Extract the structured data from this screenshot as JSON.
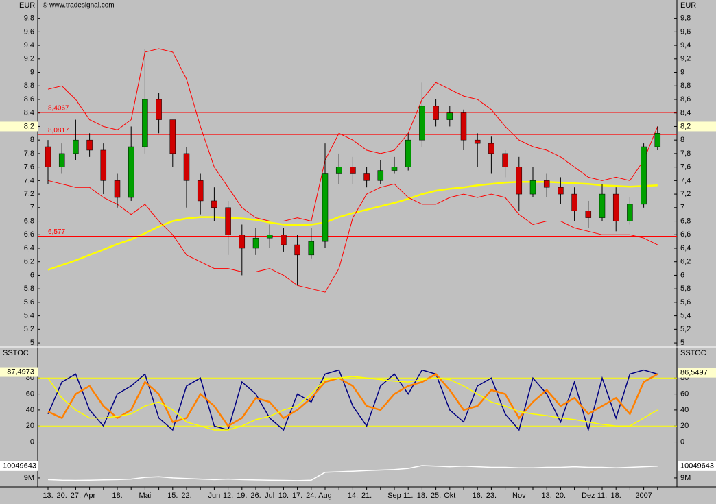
{
  "chart_data": [
    {
      "type": "candlestick",
      "unit_label": "EUR",
      "source": "© www.tradesignal.com",
      "categories": [
        "13.",
        "20.",
        "27.",
        "Apr",
        null,
        "18.",
        null,
        "Mai",
        null,
        "15.",
        "22.",
        null,
        "Jun",
        "12.",
        "19.",
        "26.",
        "Jul",
        "10.",
        "17.",
        "24.",
        "Aug",
        null,
        "14.",
        "21.",
        null,
        "Sep",
        "11.",
        "18.",
        "25.",
        "Okt",
        null,
        "16.",
        "23.",
        null,
        "Nov",
        null,
        "13.",
        "20.",
        null,
        "Dez",
        "11.",
        "18.",
        null,
        "2007",
        null
      ],
      "open": [
        7.9,
        7.6,
        7.8,
        8.0,
        7.85,
        7.4,
        7.15,
        7.9,
        8.6,
        8.3,
        7.8,
        7.4,
        7.1,
        7.0,
        6.6,
        6.4,
        6.55,
        6.6,
        6.45,
        6.3,
        6.5,
        7.5,
        7.6,
        7.5,
        7.4,
        7.55,
        7.6,
        8.0,
        8.5,
        8.3,
        8.4,
        8.0,
        7.95,
        7.8,
        7.6,
        7.2,
        7.4,
        7.3,
        7.2,
        6.95,
        6.85,
        7.2,
        6.8,
        7.05,
        7.9
      ],
      "high": [
        8.0,
        7.95,
        8.3,
        8.1,
        7.95,
        7.5,
        8.2,
        9.35,
        8.7,
        8.3,
        7.9,
        7.5,
        7.3,
        7.1,
        6.75,
        6.7,
        6.75,
        6.7,
        6.6,
        6.7,
        7.95,
        7.8,
        7.75,
        7.6,
        7.7,
        7.75,
        8.1,
        8.85,
        8.6,
        8.5,
        8.45,
        8.1,
        8.05,
        7.85,
        7.75,
        7.6,
        7.5,
        7.45,
        7.3,
        7.1,
        7.35,
        7.3,
        7.15,
        7.95,
        8.2
      ],
      "low": [
        7.35,
        7.5,
        7.7,
        7.75,
        7.2,
        7.0,
        7.1,
        7.8,
        8.1,
        7.6,
        7.0,
        6.9,
        6.8,
        6.3,
        6.0,
        6.3,
        6.4,
        6.35,
        5.85,
        6.25,
        6.4,
        7.35,
        7.35,
        7.3,
        7.35,
        7.5,
        7.55,
        7.9,
        8.2,
        8.2,
        7.85,
        7.6,
        7.5,
        7.45,
        6.95,
        7.15,
        7.15,
        7.05,
        6.8,
        6.7,
        6.8,
        6.65,
        6.75,
        7.0,
        7.85
      ],
      "close": [
        7.6,
        7.8,
        8.0,
        7.85,
        7.4,
        7.15,
        7.9,
        8.6,
        8.3,
        7.8,
        7.4,
        7.1,
        7.0,
        6.6,
        6.4,
        6.55,
        6.6,
        6.45,
        6.3,
        6.5,
        7.5,
        7.6,
        7.5,
        7.4,
        7.55,
        7.6,
        8.0,
        8.5,
        8.3,
        8.4,
        8.0,
        7.95,
        7.8,
        7.6,
        7.2,
        7.4,
        7.3,
        7.2,
        6.95,
        6.85,
        7.2,
        6.8,
        7.05,
        7.9,
        8.1
      ],
      "up_color": "#00a000",
      "down_color": "#d00000",
      "overlays": [
        {
          "color": "#ffff00",
          "values": [
            6.08,
            6.15,
            6.22,
            6.3,
            6.38,
            6.46,
            6.53,
            6.62,
            6.72,
            6.8,
            6.84,
            6.86,
            6.86,
            6.85,
            6.84,
            6.82,
            6.78,
            6.75,
            6.74,
            6.75,
            6.78,
            6.86,
            6.92,
            6.97,
            7.02,
            7.07,
            7.13,
            7.2,
            7.25,
            7.28,
            7.3,
            7.33,
            7.35,
            7.37,
            7.38,
            7.38,
            7.38,
            7.37,
            7.36,
            7.35,
            7.33,
            7.32,
            7.31,
            7.32,
            7.33
          ]
        },
        {
          "color": "#ff0000",
          "values": [
            8.75,
            8.8,
            8.6,
            8.3,
            8.2,
            8.15,
            8.3,
            9.3,
            9.35,
            9.3,
            8.9,
            8.2,
            7.6,
            7.3,
            7.0,
            6.85,
            6.8,
            6.8,
            6.85,
            6.8,
            7.7,
            8.1,
            8.0,
            7.85,
            7.8,
            7.85,
            8.1,
            8.6,
            8.85,
            8.75,
            8.65,
            8.6,
            8.45,
            8.2,
            8.0,
            7.9,
            7.85,
            7.75,
            7.6,
            7.45,
            7.4,
            7.45,
            7.4,
            7.7,
            8.2
          ]
        },
        {
          "color": "#ff0000",
          "values": [
            7.4,
            7.35,
            7.3,
            7.3,
            7.15,
            7.05,
            6.9,
            7.05,
            6.8,
            6.6,
            6.3,
            6.2,
            6.1,
            6.1,
            6.05,
            6.05,
            6.1,
            6.0,
            5.85,
            5.8,
            5.75,
            6.1,
            6.85,
            7.2,
            7.3,
            7.35,
            7.15,
            7.05,
            7.05,
            7.15,
            7.2,
            7.15,
            7.2,
            7.15,
            6.9,
            6.75,
            6.8,
            6.8,
            6.7,
            6.65,
            6.6,
            6.6,
            6.6,
            6.55,
            6.45
          ]
        }
      ],
      "levels": [
        {
          "value": 8.4067,
          "label": "8,4067"
        },
        {
          "value": 8.0817,
          "label": "8,0817"
        },
        {
          "value": 6.577,
          "label": "6,577"
        }
      ],
      "level_color": "#ff0000",
      "last_value": {
        "value": 8.2,
        "label": "8,2"
      },
      "ylim": [
        4.95,
        10.07
      ],
      "yticks": [
        5,
        {
          "value": 5.2,
          "label": "5,2"
        },
        {
          "value": 5.4,
          "label": "5,4"
        },
        {
          "value": 5.6,
          "label": "5,6"
        },
        {
          "value": 5.8,
          "label": "5,8"
        },
        6,
        {
          "value": 6.2,
          "label": "6,2"
        },
        {
          "value": 6.4,
          "label": "6,4"
        },
        {
          "value": 6.6,
          "label": "6,6"
        },
        {
          "value": 6.8,
          "label": "6,8"
        },
        7,
        {
          "value": 7.2,
          "label": "7,2"
        },
        {
          "value": 7.4,
          "label": "7,4"
        },
        {
          "value": 7.6,
          "label": "7,6"
        },
        {
          "value": 7.8,
          "label": "7,8"
        },
        8,
        {
          "value": 8.2,
          "label": "8,2"
        },
        {
          "value": 8.4,
          "label": "8,4"
        },
        {
          "value": 8.6,
          "label": "8,6"
        },
        {
          "value": 8.8,
          "label": "8,8"
        },
        9,
        {
          "value": 9.2,
          "label": "9,2"
        },
        {
          "value": 9.4,
          "label": "9,4"
        },
        {
          "value": 9.6,
          "label": "9,6"
        },
        {
          "value": 9.8,
          "label": "9,8"
        }
      ]
    },
    {
      "type": "line",
      "title": "SSTOC",
      "series": [
        {
          "color": "#000080",
          "values": [
            35,
            75,
            85,
            40,
            20,
            60,
            70,
            85,
            30,
            15,
            70,
            80,
            20,
            15,
            75,
            60,
            30,
            15,
            60,
            50,
            85,
            90,
            45,
            20,
            70,
            85,
            60,
            90,
            85,
            40,
            25,
            70,
            80,
            35,
            15,
            80,
            60,
            25,
            75,
            15,
            80,
            30,
            85,
            90,
            85
          ]
        },
        {
          "color": "#ff8000",
          "values": [
            38,
            30,
            60,
            70,
            45,
            30,
            40,
            75,
            60,
            25,
            30,
            60,
            45,
            20,
            30,
            55,
            50,
            30,
            40,
            55,
            75,
            80,
            70,
            45,
            40,
            60,
            70,
            75,
            85,
            65,
            40,
            45,
            65,
            60,
            30,
            50,
            65,
            45,
            55,
            35,
            45,
            55,
            35,
            75,
            85
          ]
        },
        {
          "color": "#ffff00",
          "values": [
            80,
            55,
            40,
            30,
            30,
            32,
            35,
            45,
            50,
            40,
            25,
            20,
            15,
            15,
            20,
            28,
            32,
            40,
            45,
            60,
            78,
            80,
            82,
            80,
            78,
            76,
            75,
            78,
            80,
            78,
            70,
            60,
            50,
            45,
            38,
            35,
            33,
            30,
            28,
            25,
            22,
            20,
            20,
            30,
            40
          ]
        }
      ],
      "levels": [
        20,
        80
      ],
      "level_color": "#ffff00",
      "markers": [
        {
          "value": 87.4973,
          "label": "87,4973"
        },
        {
          "value": 86.5497,
          "label": "86,5497"
        }
      ],
      "ylim": [
        -15,
        118
      ],
      "yticks": [
        0,
        20,
        40,
        60,
        80
      ]
    },
    {
      "type": "line",
      "series": [
        {
          "color": "#ffffff",
          "values": [
            8850000,
            8800000,
            8780000,
            8800000,
            8830000,
            8850000,
            8900000,
            9050000,
            9100000,
            9000000,
            8950000,
            8900000,
            8850000,
            8900000,
            8850000,
            8820000,
            8800000,
            8780000,
            8760000,
            8800000,
            9500000,
            9550000,
            9600000,
            9650000,
            9700000,
            9750000,
            9850000,
            10100000,
            10050000,
            10000000,
            10050000,
            10000000,
            9950000,
            9950000,
            9900000,
            9900000,
            9950000,
            9950000,
            10000000,
            9950000,
            9950000,
            9900000,
            9950000,
            10000000,
            10050000
          ]
        }
      ],
      "marker": 10049643,
      "ylim": [
        8260000,
        10960000
      ],
      "yticks": [
        {
          "value": 9000000,
          "label": "9M"
        }
      ]
    }
  ]
}
